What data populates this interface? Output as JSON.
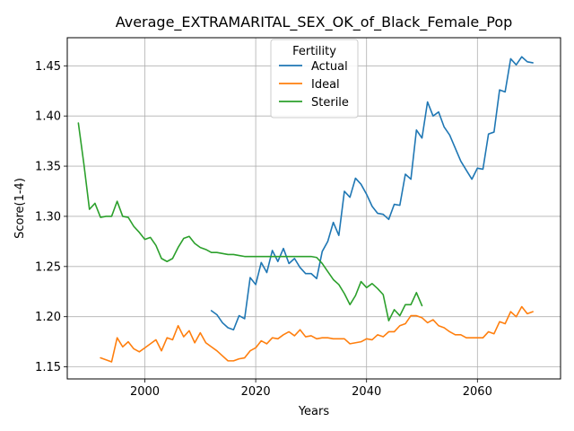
{
  "chart_data": {
    "type": "line",
    "title": "Average_EXTRAMARITAL_SEX_OK_of_Black_Female_Pop",
    "xlabel": "Years",
    "ylabel": "Score(1-4)",
    "xlim": [
      1986,
      2075
    ],
    "ylim": [
      1.138,
      1.478
    ],
    "xticks": [
      2000,
      2020,
      2040,
      2060
    ],
    "yticks": [
      1.15,
      1.2,
      1.25,
      1.3,
      1.35,
      1.4,
      1.45
    ],
    "ytick_labels": [
      "1.15",
      "1.20",
      "1.25",
      "1.30",
      "1.35",
      "1.40",
      "1.45"
    ],
    "grid": true,
    "legend": {
      "title": "Fertility",
      "position": "top-center"
    },
    "series": [
      {
        "name": "Actual",
        "color": "#1f77b4",
        "x": [
          2012,
          2013,
          2014,
          2015,
          2016,
          2017,
          2018,
          2019,
          2020,
          2021,
          2022,
          2023,
          2024,
          2025,
          2026,
          2027,
          2028,
          2029,
          2030,
          2031,
          2032,
          2033,
          2034,
          2035,
          2036,
          2037,
          2038,
          2039,
          2040,
          2041,
          2042,
          2043,
          2044,
          2045,
          2046,
          2047,
          2048,
          2049,
          2050,
          2051,
          2052,
          2053,
          2054,
          2055,
          2056,
          2057,
          2058,
          2059,
          2060,
          2061,
          2062,
          2063,
          2064,
          2065,
          2066,
          2067,
          2068,
          2069,
          2070
        ],
        "values": [
          1.206,
          1.202,
          1.194,
          1.189,
          1.187,
          1.201,
          1.198,
          1.239,
          1.232,
          1.254,
          1.244,
          1.266,
          1.255,
          1.268,
          1.253,
          1.258,
          1.249,
          1.243,
          1.243,
          1.238,
          1.265,
          1.275,
          1.294,
          1.281,
          1.325,
          1.319,
          1.338,
          1.332,
          1.322,
          1.31,
          1.303,
          1.302,
          1.297,
          1.312,
          1.311,
          1.342,
          1.337,
          1.386,
          1.378,
          1.414,
          1.4,
          1.404,
          1.389,
          1.381,
          1.368,
          1.355,
          1.346,
          1.337,
          1.348,
          1.347,
          1.382,
          1.384,
          1.426,
          1.424,
          1.457,
          1.451,
          1.459,
          1.454,
          1.453
        ]
      },
      {
        "name": "Ideal",
        "color": "#ff7f0e",
        "x": [
          1992,
          1993,
          1994,
          1995,
          1996,
          1997,
          1998,
          1999,
          2000,
          2001,
          2002,
          2003,
          2004,
          2005,
          2006,
          2007,
          2008,
          2009,
          2010,
          2011,
          2012,
          2013,
          2014,
          2015,
          2016,
          2017,
          2018,
          2019,
          2020,
          2021,
          2022,
          2023,
          2024,
          2025,
          2026,
          2027,
          2028,
          2029,
          2030,
          2031,
          2032,
          2033,
          2034,
          2035,
          2036,
          2037,
          2038,
          2039,
          2040,
          2041,
          2042,
          2043,
          2044,
          2045,
          2046,
          2047,
          2048,
          2049,
          2050,
          2051,
          2052,
          2053,
          2054,
          2055,
          2056,
          2057,
          2058,
          2059,
          2060,
          2061,
          2062,
          2063,
          2064,
          2065,
          2066,
          2067,
          2068,
          2069,
          2070
        ],
        "values": [
          1.159,
          1.157,
          1.155,
          1.179,
          1.17,
          1.175,
          1.168,
          1.165,
          1.169,
          1.173,
          1.177,
          1.166,
          1.179,
          1.177,
          1.191,
          1.18,
          1.186,
          1.174,
          1.184,
          1.174,
          1.17,
          1.166,
          1.161,
          1.156,
          1.156,
          1.158,
          1.159,
          1.166,
          1.169,
          1.176,
          1.173,
          1.179,
          1.178,
          1.182,
          1.185,
          1.181,
          1.187,
          1.18,
          1.181,
          1.178,
          1.179,
          1.179,
          1.178,
          1.178,
          1.178,
          1.173,
          1.174,
          1.175,
          1.178,
          1.177,
          1.182,
          1.18,
          1.185,
          1.185,
          1.191,
          1.193,
          1.201,
          1.201,
          1.199,
          1.194,
          1.197,
          1.191,
          1.189,
          1.185,
          1.182,
          1.182,
          1.179,
          1.179,
          1.179,
          1.179,
          1.185,
          1.183,
          1.195,
          1.193,
          1.205,
          1.2,
          1.21,
          1.203,
          1.205
        ]
      },
      {
        "name": "Sterile",
        "color": "#2ca02c",
        "x": [
          1988,
          1989,
          1990,
          1991,
          1992,
          1993,
          1994,
          1995,
          1996,
          1997,
          1998,
          1999,
          2000,
          2001,
          2002,
          2003,
          2004,
          2005,
          2006,
          2007,
          2008,
          2009,
          2010,
          2011,
          2012,
          2013,
          2014,
          2015,
          2016,
          2017,
          2018,
          2019,
          2020,
          2021,
          2022,
          2023,
          2024,
          2025,
          2026,
          2027,
          2028,
          2029,
          2030,
          2031,
          2032,
          2033,
          2034,
          2035,
          2036,
          2037,
          2038,
          2039,
          2040,
          2041,
          2042,
          2043,
          2044,
          2045,
          2046,
          2047,
          2048,
          2049,
          2050
        ],
        "values": [
          1.393,
          1.352,
          1.307,
          1.313,
          1.299,
          1.3,
          1.3,
          1.315,
          1.3,
          1.299,
          1.29,
          1.284,
          1.277,
          1.279,
          1.271,
          1.258,
          1.255,
          1.258,
          1.269,
          1.278,
          1.28,
          1.273,
          1.269,
          1.267,
          1.264,
          1.264,
          1.263,
          1.262,
          1.262,
          1.261,
          1.26,
          1.26,
          1.26,
          1.26,
          1.26,
          1.26,
          1.26,
          1.26,
          1.26,
          1.26,
          1.26,
          1.26,
          1.26,
          1.259,
          1.253,
          1.245,
          1.237,
          1.232,
          1.223,
          1.212,
          1.221,
          1.235,
          1.229,
          1.233,
          1.228,
          1.222,
          1.196,
          1.207,
          1.201,
          1.212,
          1.212,
          1.224,
          1.211
        ]
      }
    ]
  }
}
